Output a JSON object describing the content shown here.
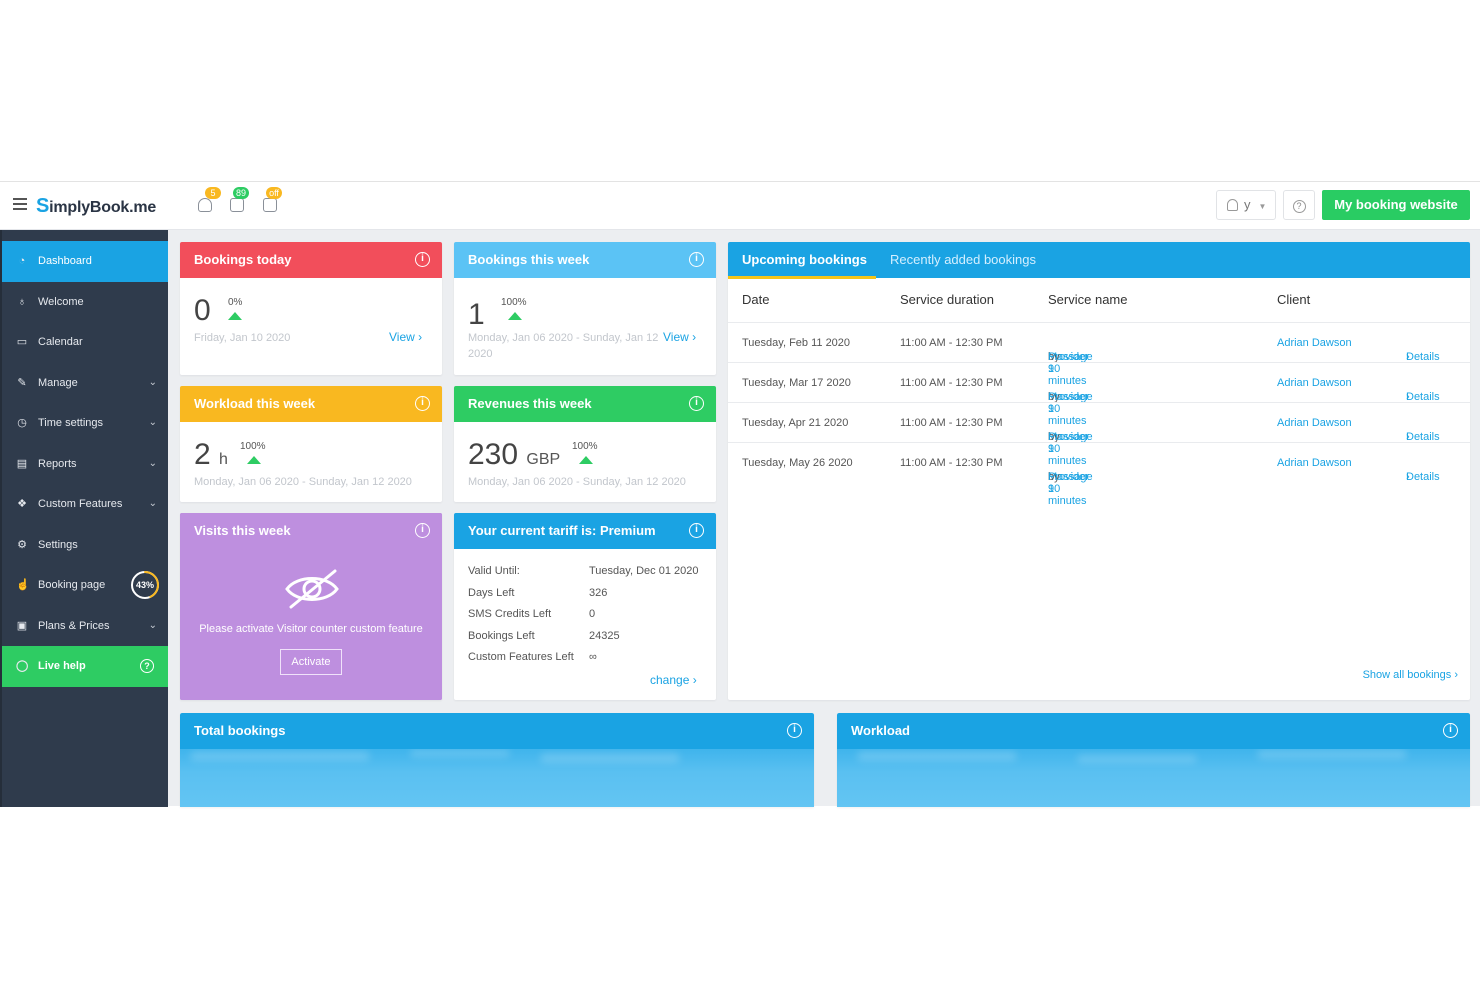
{
  "brand": {
    "logo_s": "S",
    "logo_text": "implyBook",
    "logo_suffix": ".me"
  },
  "topbar": {
    "badges": {
      "notifications": "5",
      "bookings": "89",
      "calendar": "off"
    },
    "user_label": "y",
    "site_button": "My booking website"
  },
  "colors": {
    "primary": "#1aa3e3",
    "green": "#2ecc63",
    "red": "#f24e5b",
    "lightblue": "#5bc3f5",
    "amber": "#f9b820",
    "purple": "#be8fdf",
    "sidebar": "#2f3b4c"
  },
  "sidebar": {
    "items": [
      {
        "label": "Dashboard",
        "icon": "dashboard-icon"
      },
      {
        "label": "Welcome",
        "icon": "bulb-icon"
      },
      {
        "label": "Calendar",
        "icon": "calendar-icon"
      },
      {
        "label": "Manage",
        "icon": "wrench-icon"
      },
      {
        "label": "Time settings",
        "icon": "clock-icon"
      },
      {
        "label": "Reports",
        "icon": "chart-icon"
      },
      {
        "label": "Custom Features",
        "icon": "gift-icon"
      },
      {
        "label": "Settings",
        "icon": "gear-icon"
      },
      {
        "label": "Booking page",
        "icon": "hand-icon",
        "progress": "43%",
        "progress_value": 0.43
      },
      {
        "label": "Plans & Prices",
        "icon": "money-icon"
      },
      {
        "label": "Live help",
        "icon": "chat-icon"
      }
    ]
  },
  "cards": {
    "bookings_today": {
      "title": "Bookings today",
      "value": "0",
      "pct": "0%",
      "date": "Friday, Jan 10 2020",
      "link": "View"
    },
    "bookings_week": {
      "title": "Bookings this week",
      "value": "1",
      "pct": "100%",
      "date": "Monday, Jan 06 2020 - Sunday, Jan 12 2020",
      "link": "View"
    },
    "workload_week": {
      "title": "Workload this week",
      "value": "2",
      "unit": "h",
      "pct": "100%",
      "date": "Monday, Jan 06 2020 - Sunday, Jan 12 2020"
    },
    "revenues_week": {
      "title": "Revenues this week",
      "value": "230",
      "unit": "GBP",
      "pct": "100%",
      "date": "Monday, Jan 06 2020 - Sunday, Jan 12 2020"
    },
    "visits_week": {
      "title": "Visits this week",
      "message": "Please activate Visitor counter custom feature",
      "button": "Activate"
    },
    "tariff": {
      "title": "Your current tariff is: Premium",
      "rows": [
        {
          "label": "Valid Until:",
          "value": "Tuesday, Dec 01 2020"
        },
        {
          "label": "Days Left",
          "value": "326"
        },
        {
          "label": "SMS Credits Left",
          "value": "0"
        },
        {
          "label": "Bookings Left",
          "value": "24325"
        },
        {
          "label": "Custom Features Left",
          "value": "∞"
        }
      ],
      "link": "change"
    },
    "total_bookings": {
      "title": "Total bookings"
    },
    "workload": {
      "title": "Workload"
    }
  },
  "bookings": {
    "tabs": [
      "Upcoming bookings",
      "Recently added bookings"
    ],
    "columns": [
      "Date",
      "Service duration",
      "Service name",
      "Client"
    ],
    "rows": [
      {
        "date": "Tuesday, Feb 11 2020",
        "duration": "11:00 AM - 12:30 PM",
        "service": "Massage 90 minutes",
        "by": "by",
        "provider": "Provider 1",
        "client": "Adrian Dawson",
        "details": "Details"
      },
      {
        "date": "Tuesday, Mar 17 2020",
        "duration": "11:00 AM - 12:30 PM",
        "service": "Massage 90 minutes",
        "by": "by",
        "provider": "Provider 1",
        "client": "Adrian Dawson",
        "details": "Details"
      },
      {
        "date": "Tuesday, Apr 21 2020",
        "duration": "11:00 AM - 12:30 PM",
        "service": "Massage 90 minutes",
        "by": "by",
        "provider": "Provider 1",
        "client": "Adrian Dawson",
        "details": "Details"
      },
      {
        "date": "Tuesday, May 26 2020",
        "duration": "11:00 AM - 12:30 PM",
        "service": "Massage 90 minutes",
        "by": "by",
        "provider": "Provider 1",
        "client": "Adrian Dawson",
        "details": "Details"
      }
    ],
    "show_all": "Show all bookings"
  }
}
